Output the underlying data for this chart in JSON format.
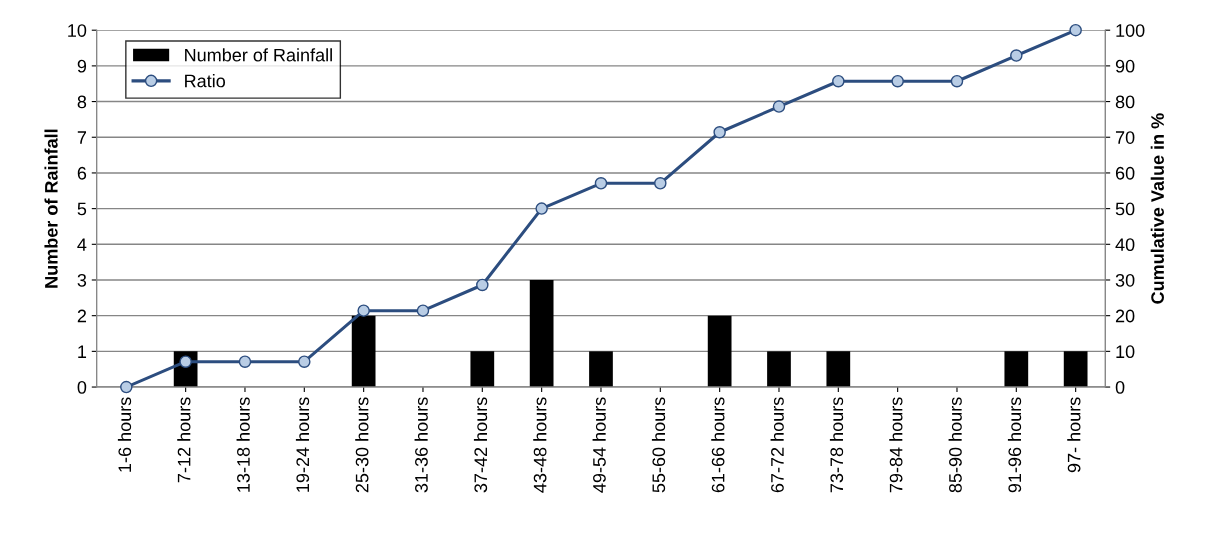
{
  "chart_data": {
    "type": "bar",
    "xlabel": null,
    "ylabel": "Number of Rainfall",
    "y2label": "Cumulative Value in %",
    "categories": [
      "1-6 hours",
      "7-12 hours",
      "13-18 hours",
      "19-24 hours",
      "25-30 hours",
      "31-36 hours",
      "37-42 hours",
      "43-48 hours",
      "49-54 hours",
      "55-60 hours",
      "61-66 hours",
      "67-72 hours",
      "73-78 hours",
      "79-84 hours",
      "85-90 hours",
      "91-96 hours",
      "97- hours"
    ],
    "series": [
      {
        "name": "Number of Rainfall",
        "color": "#000000",
        "values": [
          0,
          1,
          0,
          0,
          2,
          0,
          1,
          3,
          1,
          0,
          2,
          1,
          1,
          0,
          0,
          1,
          1
        ]
      },
      {
        "name": "Ratio",
        "type": "line",
        "axis": "y2",
        "color": "#2c4d7f",
        "marker": "circle",
        "values": [
          0,
          7.1,
          7.1,
          7.1,
          21.4,
          21.4,
          28.6,
          50,
          57.1,
          57.1,
          71.4,
          78.6,
          85.7,
          85.7,
          85.7,
          92.9,
          100
        ]
      }
    ],
    "ylim": [
      0,
      10
    ],
    "yticks": [
      0,
      1,
      2,
      3,
      4,
      5,
      6,
      7,
      8,
      9,
      10
    ],
    "y2lim": [
      0,
      100
    ],
    "y2ticks": [
      0,
      10,
      20,
      30,
      40,
      50,
      60,
      70,
      80,
      90,
      100
    ],
    "grid": "y",
    "legend": "top left"
  }
}
